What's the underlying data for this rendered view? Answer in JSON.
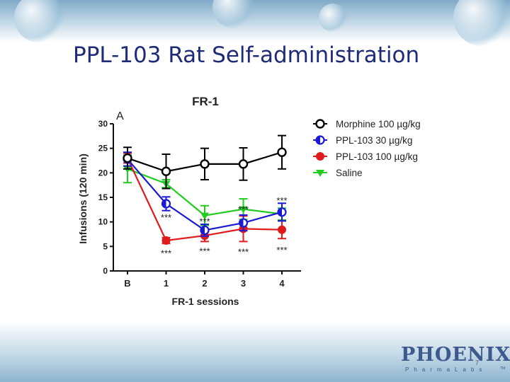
{
  "slide": {
    "title": "PPL-103 Rat Self-administration",
    "page_number": "7",
    "logo_text": "PHOENIX",
    "logo_subtext": "PharmaLabs",
    "logo_tm": "TM"
  },
  "chart_data": {
    "type": "line",
    "title": "FR-1",
    "panel_label": "A",
    "xlabel": "FR-1 sessions",
    "ylabel": "Infusions (120 min)",
    "categories": [
      "B",
      "1",
      "2",
      "3",
      "4"
    ],
    "ylim": [
      0,
      30
    ],
    "yticks": [
      0,
      5,
      10,
      15,
      20,
      25,
      30
    ],
    "legend_position": "right",
    "grid": false,
    "series": [
      {
        "name": "Morphine 100 µg/kg",
        "color": "#000000",
        "marker": "circle-open",
        "values": [
          23.0,
          20.3,
          21.8,
          21.8,
          24.2
        ],
        "errors": [
          2.2,
          3.5,
          3.2,
          3.3,
          3.4
        ]
      },
      {
        "name": "PPL-103 30 µg/kg",
        "color": "#1a1ad6",
        "marker": "circle-half",
        "values": [
          22.8,
          13.7,
          8.3,
          9.8,
          12.0
        ],
        "errors": [
          1.4,
          1.4,
          1.2,
          1.6,
          1.8
        ]
      },
      {
        "name": "PPL-103 100 µg/kg",
        "color": "#e01b1b",
        "marker": "circle-filled",
        "values": [
          23.0,
          6.2,
          7.2,
          8.6,
          8.4
        ],
        "errors": [
          1.0,
          0.6,
          1.2,
          2.6,
          1.8
        ]
      },
      {
        "name": "Saline",
        "color": "#22cc22",
        "marker": "triangle-down",
        "values": [
          20.8,
          17.8,
          11.3,
          12.6,
          11.6
        ],
        "errors": [
          2.8,
          0.8,
          2.0,
          2.1,
          1.2
        ]
      }
    ],
    "annotations": [
      {
        "text": "***",
        "category": "1",
        "y": 10.8
      },
      {
        "text": "***",
        "category": "1",
        "y": 3.5
      },
      {
        "text": "***",
        "category": "2",
        "y": 10.0
      },
      {
        "text": "***",
        "category": "2",
        "y": 4.0
      },
      {
        "text": "***",
        "category": "3",
        "y": 12.5
      },
      {
        "text": "***",
        "category": "3",
        "y": 3.8
      },
      {
        "text": "***",
        "category": "4",
        "y": 14.3
      },
      {
        "text": "***",
        "category": "4",
        "y": 4.2
      }
    ]
  }
}
